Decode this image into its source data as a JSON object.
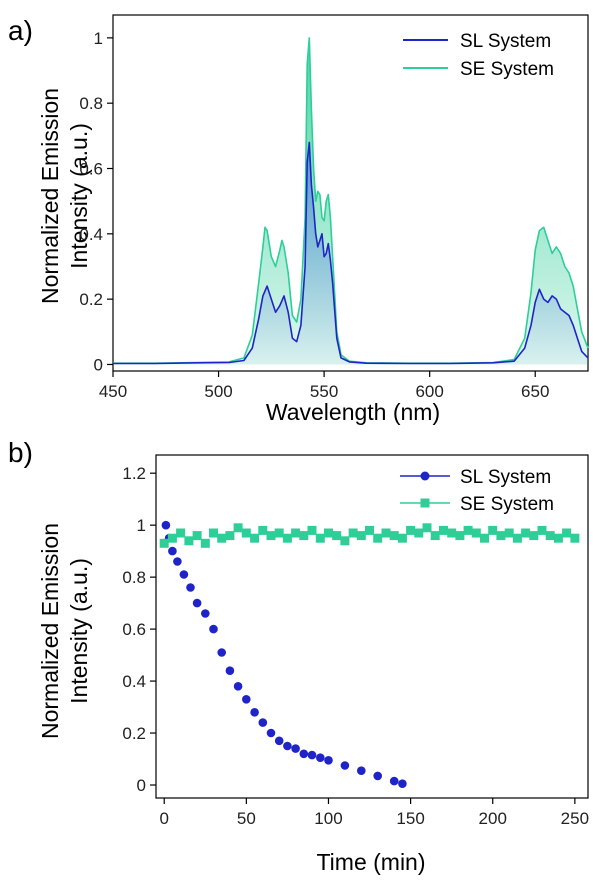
{
  "chart_data": [
    {
      "panel_label": "a)",
      "type": "line",
      "xlabel": "Wavelength (nm)",
      "ylabel_lines": [
        "Normalized Emission",
        "Intensity (a.u.)"
      ],
      "xlim": [
        450,
        675
      ],
      "ylim": [
        -0.02,
        1.07
      ],
      "x_ticks": [
        450,
        500,
        550,
        600,
        650
      ],
      "x_tick_labels": [
        "450",
        "500",
        "550",
        "600",
        "650"
      ],
      "y_ticks": [
        0,
        0.2,
        0.4,
        0.6,
        0.8,
        1
      ],
      "y_tick_labels": [
        "0",
        "0.2",
        "0.4",
        "0.6",
        "0.8",
        "1"
      ],
      "legend_position": "top-right",
      "series": [
        {
          "name": "SL System",
          "color": "#1f24c8",
          "x": [
            450,
            470,
            490,
            505,
            512,
            516,
            519,
            521,
            523,
            525,
            527,
            529,
            531,
            533,
            535,
            537,
            539,
            541,
            542,
            543,
            544,
            545,
            546,
            547,
            548,
            549,
            550,
            551,
            552,
            553,
            554,
            556,
            558,
            562,
            570,
            590,
            610,
            630,
            640,
            645,
            648,
            650,
            652,
            654,
            656,
            658,
            660,
            662,
            664,
            666,
            668,
            670,
            672,
            675
          ],
          "y": [
            0.003,
            0.003,
            0.005,
            0.006,
            0.012,
            0.05,
            0.14,
            0.21,
            0.24,
            0.2,
            0.16,
            0.18,
            0.21,
            0.16,
            0.08,
            0.07,
            0.12,
            0.3,
            0.62,
            0.68,
            0.55,
            0.48,
            0.4,
            0.36,
            0.38,
            0.4,
            0.33,
            0.34,
            0.37,
            0.32,
            0.25,
            0.08,
            0.02,
            0.008,
            0.004,
            0.003,
            0.003,
            0.005,
            0.01,
            0.05,
            0.12,
            0.19,
            0.23,
            0.2,
            0.19,
            0.21,
            0.2,
            0.17,
            0.16,
            0.15,
            0.12,
            0.08,
            0.04,
            0.02
          ]
        },
        {
          "name": "SE System",
          "color": "#2ecf96",
          "x": [
            450,
            470,
            490,
            505,
            512,
            516,
            519,
            521,
            522,
            523,
            525,
            527,
            529,
            530,
            531,
            533,
            535,
            537,
            539,
            541,
            542,
            543,
            544,
            545,
            546,
            547,
            548,
            549,
            550,
            551,
            552,
            553,
            554,
            556,
            558,
            562,
            570,
            590,
            610,
            630,
            640,
            645,
            648,
            650,
            652,
            654,
            656,
            658,
            660,
            662,
            664,
            666,
            668,
            670,
            672,
            675
          ],
          "y": [
            0.004,
            0.004,
            0.006,
            0.008,
            0.02,
            0.09,
            0.25,
            0.36,
            0.42,
            0.41,
            0.33,
            0.3,
            0.35,
            0.38,
            0.36,
            0.28,
            0.15,
            0.13,
            0.2,
            0.45,
            0.92,
            1.0,
            0.78,
            0.6,
            0.5,
            0.53,
            0.52,
            0.45,
            0.44,
            0.5,
            0.52,
            0.45,
            0.33,
            0.1,
            0.03,
            0.01,
            0.005,
            0.004,
            0.004,
            0.006,
            0.015,
            0.08,
            0.22,
            0.35,
            0.41,
            0.42,
            0.38,
            0.34,
            0.36,
            0.34,
            0.3,
            0.28,
            0.24,
            0.17,
            0.1,
            0.05
          ]
        }
      ]
    },
    {
      "panel_label": "b)",
      "type": "scatter",
      "xlabel": "Time (min)",
      "ylabel_lines": [
        "Normalized Emission",
        "Intensity (a.u.)"
      ],
      "xlim": [
        -5,
        258
      ],
      "ylim": [
        -0.05,
        1.27
      ],
      "x_ticks": [
        0,
        50,
        100,
        150,
        200,
        250
      ],
      "x_tick_labels": [
        "0",
        "50",
        "100",
        "150",
        "200",
        "250"
      ],
      "y_ticks": [
        0,
        0.2,
        0.4,
        0.6,
        0.8,
        1,
        1.2
      ],
      "y_tick_labels": [
        "0",
        "0.2",
        "0.4",
        "0.6",
        "0.8",
        "1",
        "1.2"
      ],
      "legend_position": "top-right",
      "series": [
        {
          "name": "SL System",
          "color": "#1f24c8",
          "marker": "circle",
          "x": [
            1,
            3,
            5,
            8,
            12,
            16,
            20,
            25,
            30,
            35,
            40,
            45,
            50,
            55,
            60,
            65,
            70,
            75,
            80,
            85,
            90,
            95,
            100,
            110,
            120,
            130,
            140,
            145
          ],
          "y": [
            1.0,
            0.95,
            0.9,
            0.86,
            0.81,
            0.76,
            0.7,
            0.66,
            0.6,
            0.51,
            0.44,
            0.38,
            0.33,
            0.28,
            0.24,
            0.2,
            0.17,
            0.15,
            0.14,
            0.12,
            0.115,
            0.105,
            0.095,
            0.075,
            0.055,
            0.035,
            0.015,
            0.005
          ]
        },
        {
          "name": "SE System",
          "color": "#2ecf96",
          "marker": "square",
          "x": [
            0,
            5,
            10,
            15,
            20,
            25,
            30,
            35,
            40,
            45,
            50,
            55,
            60,
            65,
            70,
            75,
            80,
            85,
            90,
            95,
            100,
            105,
            110,
            115,
            120,
            125,
            130,
            135,
            140,
            145,
            150,
            155,
            160,
            165,
            170,
            175,
            180,
            185,
            190,
            195,
            200,
            205,
            210,
            215,
            220,
            225,
            230,
            235,
            240,
            245,
            250
          ],
          "y": [
            0.93,
            0.95,
            0.97,
            0.94,
            0.96,
            0.93,
            0.97,
            0.95,
            0.96,
            0.99,
            0.97,
            0.95,
            0.98,
            0.96,
            0.97,
            0.95,
            0.97,
            0.96,
            0.98,
            0.95,
            0.97,
            0.96,
            0.94,
            0.97,
            0.96,
            0.98,
            0.95,
            0.97,
            0.96,
            0.95,
            0.98,
            0.97,
            0.99,
            0.96,
            0.98,
            0.97,
            0.96,
            0.98,
            0.97,
            0.95,
            0.98,
            0.96,
            0.97,
            0.95,
            0.97,
            0.96,
            0.98,
            0.96,
            0.95,
            0.97,
            0.95
          ]
        }
      ]
    }
  ]
}
